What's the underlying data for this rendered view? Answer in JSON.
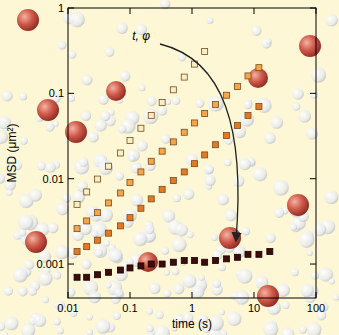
{
  "chart_data": {
    "type": "scatter",
    "x_label": "time (s)",
    "y_label": "MSD (μm²)",
    "annotation": "t, φ",
    "log": true,
    "grid": false,
    "marker": "square",
    "xlim": [
      0.01,
      100
    ],
    "ylim": [
      0.0004,
      1
    ],
    "xticks": [
      0.01,
      0.1,
      1,
      10,
      100
    ],
    "yticks": [
      0.001,
      0.01,
      0.1,
      1
    ],
    "x": [
      0.014,
      0.02,
      0.03,
      0.045,
      0.07,
      0.1,
      0.15,
      0.22,
      0.33,
      0.5,
      0.75,
      1.1,
      1.6,
      2.4,
      3.6,
      5.4,
      8,
      12,
      18
    ],
    "series": [
      {
        "color": "#f7f0c4",
        "values": [
          0.005,
          0.007,
          0.0099,
          0.014,
          0.02,
          0.028,
          0.039,
          0.055,
          0.078,
          0.11,
          0.155,
          0.22,
          0.31,
          null,
          null,
          null,
          null,
          null,
          null
        ]
      },
      {
        "color": "#f5a54a",
        "values": [
          0.0026,
          0.0032,
          0.004,
          0.0052,
          0.0068,
          0.009,
          0.012,
          0.016,
          0.021,
          0.027,
          0.035,
          0.045,
          0.058,
          0.074,
          0.095,
          0.12,
          0.16,
          0.2,
          null
        ]
      },
      {
        "color": "#e37a22",
        "values": [
          0.0014,
          0.0016,
          0.0019,
          0.0023,
          0.0028,
          0.0035,
          0.0045,
          0.0058,
          0.0075,
          0.0095,
          0.012,
          0.015,
          0.019,
          0.025,
          0.032,
          0.042,
          0.055,
          0.07,
          null
        ]
      },
      {
        "color": "#3d0b0b",
        "values": [
          0.0007,
          0.0007,
          0.00075,
          0.0008,
          0.00085,
          0.0009,
          0.00095,
          0.001,
          0.001,
          0.00105,
          0.0011,
          0.0011,
          0.00105,
          0.0011,
          0.00115,
          0.0012,
          0.0013,
          0.0013,
          0.0014
        ]
      }
    ]
  }
}
